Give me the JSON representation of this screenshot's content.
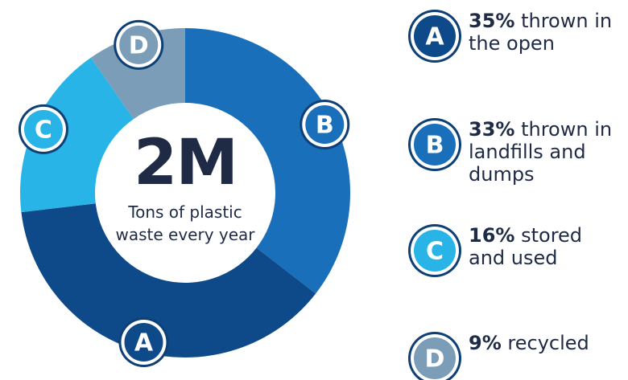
{
  "chart_data": {
    "type": "donut",
    "center_label": "2M",
    "center_text": "Tons of plastic waste every year",
    "categories": [
      "A",
      "B",
      "C",
      "D"
    ],
    "values": [
      35,
      33,
      16,
      9
    ],
    "value_labels": [
      "35%",
      "33%",
      "16%",
      "9%"
    ],
    "descriptions": [
      "thrown in the open",
      "thrown in landfills and dumps",
      "stored and used",
      "recycled"
    ],
    "colors": [
      "#0e4a8a",
      "#1a6fba",
      "#28b4e6",
      "#7b9db7"
    ],
    "segment_order": [
      1,
      0,
      2,
      3
    ]
  }
}
